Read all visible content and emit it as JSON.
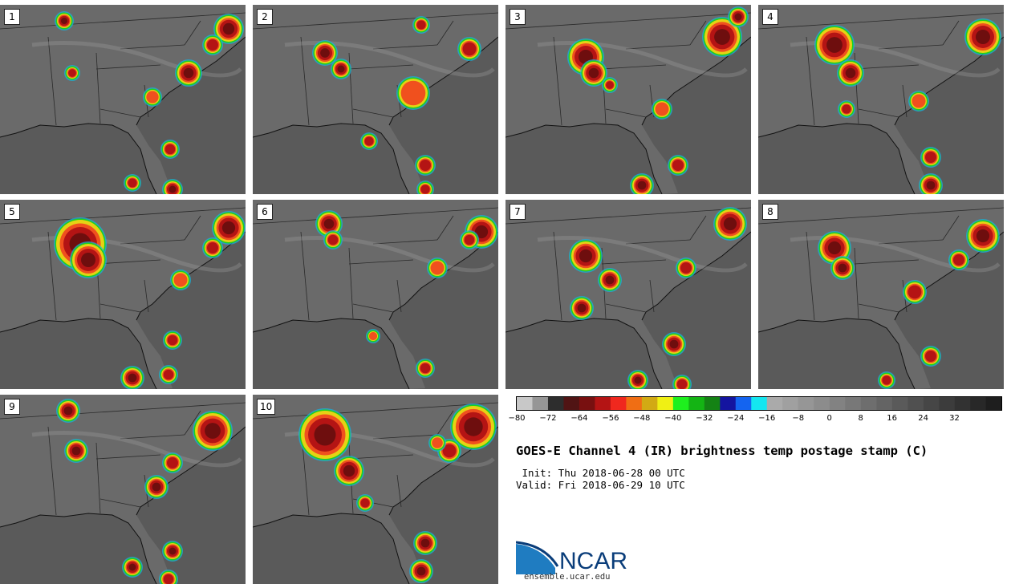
{
  "panels": [
    {
      "label": "1"
    },
    {
      "label": "2"
    },
    {
      "label": "3"
    },
    {
      "label": "4"
    },
    {
      "label": "5"
    },
    {
      "label": "6"
    },
    {
      "label": "7"
    },
    {
      "label": "8"
    },
    {
      "label": "9"
    },
    {
      "label": "10"
    }
  ],
  "colorbar": {
    "colors": [
      "#c8c8c8",
      "#969696",
      "#2d2d2d",
      "#501414",
      "#781010",
      "#b41414",
      "#f0281e",
      "#f06e14",
      "#d2aa14",
      "#f0f014",
      "#1ef01e",
      "#14b414",
      "#148214",
      "#1414a0",
      "#1464f0",
      "#14e6f0",
      "#aaaaaa",
      "#a0a0a0",
      "#969696",
      "#8c8c8c",
      "#828282",
      "#787878",
      "#6e6e6e",
      "#646464",
      "#5a5a5a",
      "#505050",
      "#464646",
      "#3c3c3c",
      "#323232",
      "#282828",
      "#1e1e1e"
    ],
    "ticks": [
      "−80",
      "−72",
      "−64",
      "−56",
      "−48",
      "−40",
      "−32",
      "−24",
      "−16",
      "−8",
      "0",
      "8",
      "16",
      "24",
      "32"
    ]
  },
  "title": "GOES-E Channel 4 (IR) brightness temp postage stamp (C)",
  "init_text": " Init: Thu 2018-06-28 00 UTC",
  "valid_text": "Valid: Fri 2018-06-29 10 UTC",
  "logo": {
    "text": "NCAR",
    "url": "ensemble.ucar.edu"
  }
}
